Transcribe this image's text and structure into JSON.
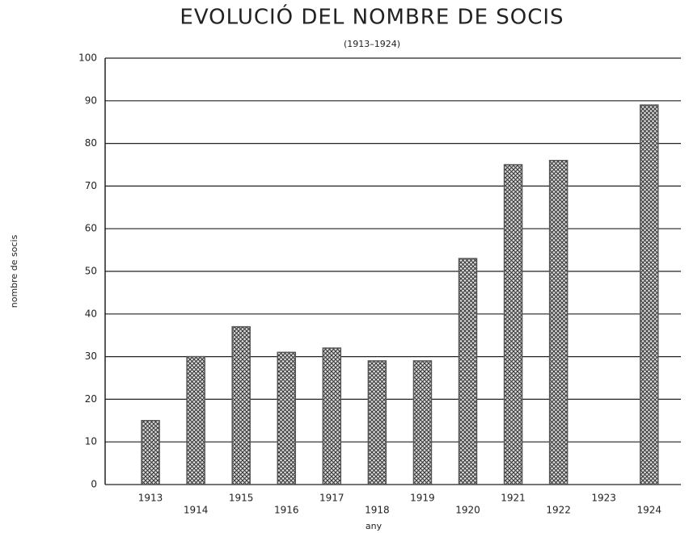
{
  "chart_data": {
    "type": "bar",
    "title": "EVOLUCIÓ DEL NOMBRE DE SOCIS",
    "subtitle": "(1913–1924)",
    "x_label": "any",
    "y_label": "nombre de socis",
    "categories": [
      "1913",
      "1914",
      "1915",
      "1916",
      "1917",
      "1918",
      "1919",
      "1920",
      "1921",
      "1922",
      "1923",
      "1924"
    ],
    "values": [
      15,
      30,
      37,
      31,
      32,
      29,
      29,
      53,
      75,
      76,
      null,
      89
    ],
    "color": "#555555",
    "ylim": [
      0,
      100
    ],
    "yticks": [
      0,
      10,
      20,
      30,
      40,
      50,
      60,
      70,
      80,
      90,
      100
    ],
    "grid": true
  }
}
